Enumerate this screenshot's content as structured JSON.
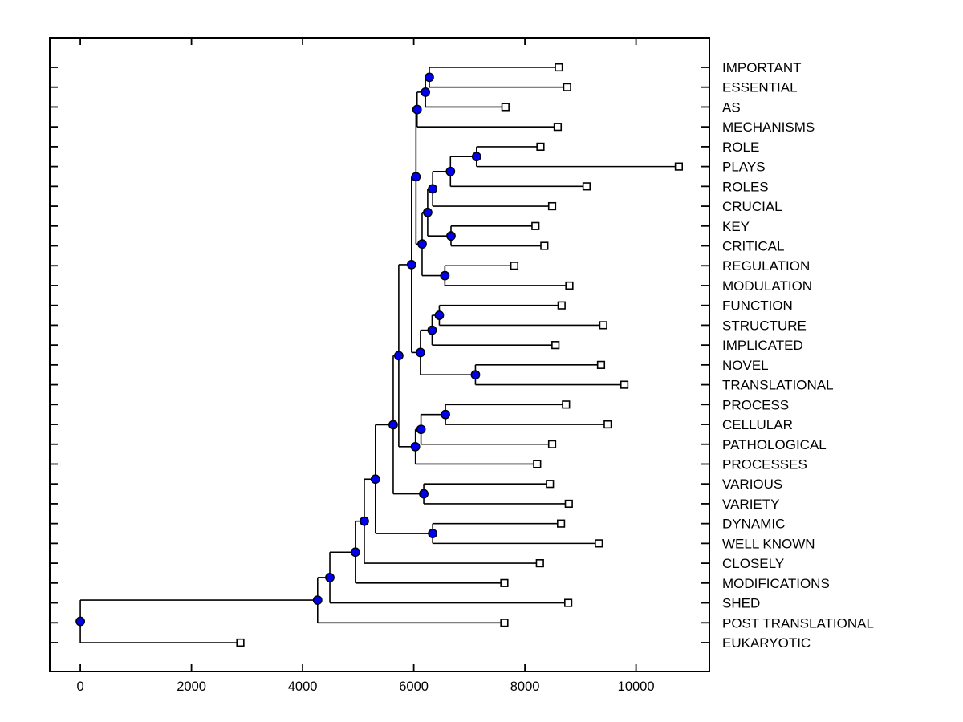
{
  "figure": {
    "background": "#ffffff",
    "kind": "hierarchical-clustering-dendrogram"
  },
  "chart_data": {
    "type": "dendrogram",
    "orientation": "horizontal-leaves-right",
    "title": "",
    "xlabel": "",
    "ylabel": "",
    "xlim": [
      -550,
      11320
    ],
    "x_ticks": [
      0,
      2000,
      4000,
      6000,
      8000,
      10000
    ],
    "x_tick_labels": [
      "0",
      "2000",
      "4000",
      "6000",
      "8000",
      "10000"
    ],
    "grid": false,
    "legend": null,
    "leaves": [
      {
        "label": "IMPORTANT",
        "x": 8610
      },
      {
        "label": "ESSENTIAL",
        "x": 8760
      },
      {
        "label": "AS",
        "x": 7650
      },
      {
        "label": "MECHANISMS",
        "x": 8590
      },
      {
        "label": "ROLE",
        "x": 8280
      },
      {
        "label": "PLAYS",
        "x": 10770
      },
      {
        "label": "ROLES",
        "x": 9110
      },
      {
        "label": "CRUCIAL",
        "x": 8490
      },
      {
        "label": "KEY",
        "x": 8190
      },
      {
        "label": "CRITICAL",
        "x": 8350
      },
      {
        "label": "REGULATION",
        "x": 7810
      },
      {
        "label": "MODULATION",
        "x": 8800
      },
      {
        "label": "FUNCTION",
        "x": 8660
      },
      {
        "label": "STRUCTURE",
        "x": 9410
      },
      {
        "label": "IMPLICATED",
        "x": 8550
      },
      {
        "label": "NOVEL",
        "x": 9370
      },
      {
        "label": "TRANSLATIONAL",
        "x": 9790
      },
      {
        "label": "PROCESS",
        "x": 8740
      },
      {
        "label": "CELLULAR",
        "x": 9490
      },
      {
        "label": "PATHOLOGICAL",
        "x": 8490
      },
      {
        "label": "PROCESSES",
        "x": 8220
      },
      {
        "label": "VARIOUS",
        "x": 8450
      },
      {
        "label": "VARIETY",
        "x": 8790
      },
      {
        "label": "DYNAMIC",
        "x": 8650
      },
      {
        "label": "WELL KNOWN",
        "x": 9330
      },
      {
        "label": "CLOSELY",
        "x": 8270
      },
      {
        "label": "MODIFICATIONS",
        "x": 7630
      },
      {
        "label": "SHED",
        "x": 8780
      },
      {
        "label": "POST TRANSLATIONAL",
        "x": 7630
      },
      {
        "label": "EUKARYOTIC",
        "x": 2880
      }
    ],
    "merges": [
      {
        "a": "L0",
        "b": "L1",
        "x": 6280
      },
      {
        "a": "M0",
        "b": "L2",
        "x": 6210
      },
      {
        "a": "M1",
        "b": "L3",
        "x": 6060
      },
      {
        "a": "L4",
        "b": "L5",
        "x": 7130
      },
      {
        "a": "M3",
        "b": "L6",
        "x": 6660
      },
      {
        "a": "M4",
        "b": "L7",
        "x": 6340
      },
      {
        "a": "L8",
        "b": "L9",
        "x": 6670
      },
      {
        "a": "M5",
        "b": "M6",
        "x": 6250
      },
      {
        "a": "L10",
        "b": "L11",
        "x": 6560
      },
      {
        "a": "M7",
        "b": "M8",
        "x": 6150
      },
      {
        "a": "M2",
        "b": "M9",
        "x": 6040
      },
      {
        "a": "L12",
        "b": "L13",
        "x": 6460
      },
      {
        "a": "M11",
        "b": "L14",
        "x": 6330
      },
      {
        "a": "L15",
        "b": "L16",
        "x": 7110
      },
      {
        "a": "M12",
        "b": "M13",
        "x": 6120
      },
      {
        "a": "M10",
        "b": "M14",
        "x": 5960
      },
      {
        "a": "L17",
        "b": "L18",
        "x": 6570
      },
      {
        "a": "M16",
        "b": "L19",
        "x": 6130
      },
      {
        "a": "M17",
        "b": "L20",
        "x": 6030
      },
      {
        "a": "M15",
        "b": "M18",
        "x": 5730
      },
      {
        "a": "L21",
        "b": "L22",
        "x": 6180
      },
      {
        "a": "M19",
        "b": "M20",
        "x": 5630
      },
      {
        "a": "L23",
        "b": "L24",
        "x": 6340
      },
      {
        "a": "M21",
        "b": "M22",
        "x": 5310
      },
      {
        "a": "M23",
        "b": "L25",
        "x": 5110
      },
      {
        "a": "M24",
        "b": "L26",
        "x": 4950
      },
      {
        "a": "M25",
        "b": "L27",
        "x": 4490
      },
      {
        "a": "M26",
        "b": "L28",
        "x": 4270
      },
      {
        "a": "M27",
        "b": "L29",
        "x": 0
      }
    ],
    "colors": {
      "line": "#000000",
      "box": "#000000",
      "merge_node_fill": "#0000ee",
      "merge_node_edge": "#000000",
      "leaf_marker_fill": "#ffffff",
      "leaf_marker_edge": "#000000",
      "text": "#000000",
      "background": "#ffffff"
    }
  }
}
